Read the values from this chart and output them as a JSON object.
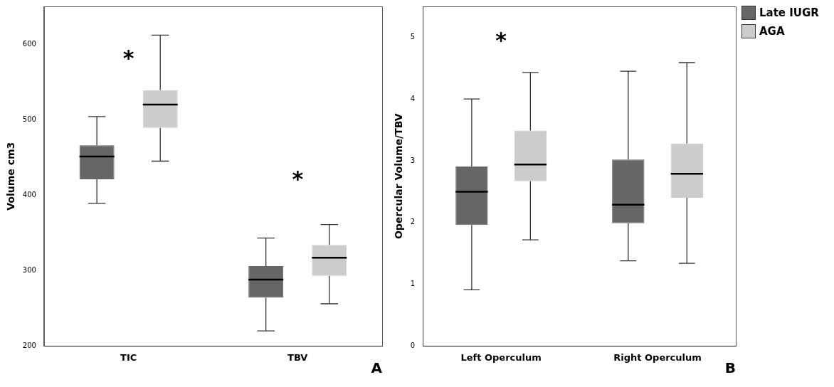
{
  "chart_data": [
    {
      "type": "box",
      "ylabel": "Volume cm3",
      "categories": [
        "TIC",
        "TBV"
      ],
      "ylim": [
        200,
        650
      ],
      "yticks": [
        200,
        300,
        400,
        500,
        600
      ],
      "grid": false,
      "legend": false,
      "series": [
        {
          "color": "#666666",
          "boxes": [
            {
              "low": 389,
              "q1": 421,
              "median": 451,
              "q3": 466,
              "high": 504
            },
            {
              "low": 220,
              "q1": 264,
              "median": 288,
              "q3": 306,
              "high": 343
            }
          ]
        },
        {
          "color": "#cccccc",
          "boxes": [
            {
              "low": 445,
              "q1": 489,
              "median": 520,
              "q3": 539,
              "high": 612
            },
            {
              "low": 256,
              "q1": 293,
              "median": 317,
              "q3": 334,
              "high": 361
            }
          ]
        }
      ],
      "annotations": [
        "*",
        "*",
        "A"
      ]
    },
    {
      "type": "box",
      "ylabel": "Opercular Volume/TBV",
      "categories": [
        "Left Operculum",
        "Right Operculum"
      ],
      "ylim": [
        0,
        5.5
      ],
      "yticks": [
        0,
        1,
        2,
        3,
        4,
        5
      ],
      "grid": false,
      "legend": "top right",
      "series": [
        {
          "name": "Late IUGR",
          "color": "#666666",
          "boxes": [
            {
              "low": 0.91,
              "q1": 1.96,
              "median": 2.5,
              "q3": 2.91,
              "high": 4.0
            },
            {
              "low": 1.38,
              "q1": 1.99,
              "median": 2.29,
              "q3": 3.02,
              "high": 4.45
            }
          ]
        },
        {
          "name": "AGA",
          "color": "#cccccc",
          "boxes": [
            {
              "low": 1.72,
              "q1": 2.67,
              "median": 2.94,
              "q3": 3.49,
              "high": 4.43
            },
            {
              "low": 1.34,
              "q1": 2.4,
              "median": 2.79,
              "q3": 3.28,
              "high": 4.59
            }
          ]
        }
      ],
      "annotations": [
        "*",
        "B"
      ]
    }
  ]
}
